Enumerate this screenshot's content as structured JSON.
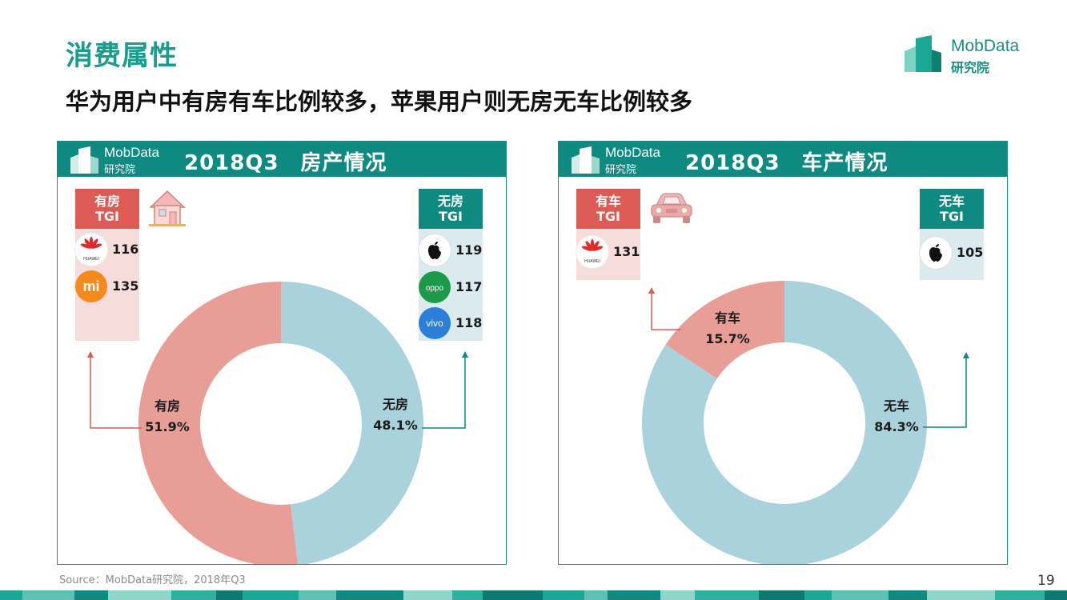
{
  "header": {
    "title": "消费属性",
    "subtitle": "华为用户中有房有车比例较多，苹果用户则无房无车比例较多",
    "brand_name": "MobData",
    "brand_sub": "研究院"
  },
  "colors": {
    "teal": "#0f8a80",
    "coral": "#e89e97",
    "light_blue": "#a9d2dc",
    "red_head": "#dd5b55",
    "pink_bg": "#f7dcdc",
    "blue_bg": "#dbeaef"
  },
  "panels": [
    {
      "logo_name": "MobData",
      "logo_sub": "研究院",
      "title": "2018Q3　房产情况",
      "left_tgi": {
        "head": [
          "有房",
          "TGI"
        ],
        "brands": [
          {
            "icon": "huawei-logo-icon",
            "value": "116"
          },
          {
            "icon": "xiaomi-logo-icon",
            "value": "135"
          }
        ]
      },
      "right_tgi": {
        "head": [
          "无房",
          "TGI"
        ],
        "brands": [
          {
            "icon": "apple-logo-icon",
            "value": "119"
          },
          {
            "icon": "oppo-logo-icon",
            "value": "117"
          },
          {
            "icon": "vivo-logo-icon",
            "value": "118"
          }
        ]
      },
      "decor_icon": "house-icon"
    },
    {
      "logo_name": "MobData",
      "logo_sub": "研究院",
      "title": "2018Q3　车产情况",
      "left_tgi": {
        "head": [
          "有车",
          "TGI"
        ],
        "brands": [
          {
            "icon": "huawei-logo-icon",
            "value": "131"
          }
        ]
      },
      "right_tgi": {
        "head": [
          "无车",
          "TGI"
        ],
        "brands": [
          {
            "icon": "apple-logo-icon",
            "value": "105"
          }
        ]
      },
      "decor_icon": "car-icon"
    }
  ],
  "brand_text": {
    "huawei": "HUAWEI",
    "xiaomi": "mi",
    "oppo": "oppo",
    "vivo": "vivo"
  },
  "chart_data": [
    {
      "type": "pie",
      "title": "2018Q3　房产情况",
      "donut": true,
      "categories": [
        "有房",
        "无房"
      ],
      "values": [
        51.9,
        48.1
      ],
      "value_labels": [
        "51.9%",
        "48.1%"
      ],
      "colors": [
        "#e89e97",
        "#a9d2dc"
      ]
    },
    {
      "type": "pie",
      "title": "2018Q3　车产情况",
      "donut": true,
      "categories": [
        "有车",
        "无车"
      ],
      "values": [
        15.7,
        84.3
      ],
      "value_labels": [
        "15.7%",
        "84.3%"
      ],
      "colors": [
        "#e89e97",
        "#a9d2dc"
      ]
    }
  ],
  "footer": {
    "source": "Source：MobData研究院，2018年Q3",
    "page_number": "19"
  }
}
